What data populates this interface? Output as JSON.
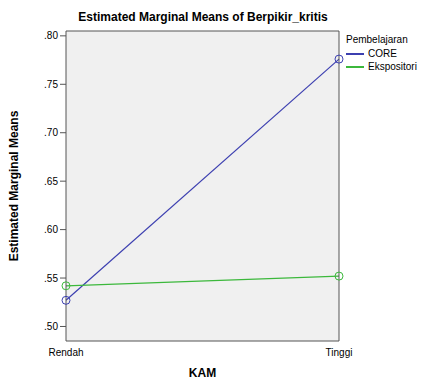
{
  "chart_data": {
    "type": "line",
    "title": "Estimated Marginal Means of Berpikir_kritis",
    "x_label": "KAM",
    "y_label": "Estimated Marginal Means",
    "legend_title": "Pembelajaran",
    "legend": "right",
    "grid": false,
    "categories": [
      "Rendah",
      "Tinggi"
    ],
    "series": [
      {
        "name": "CORE",
        "color": "#3c3fb0",
        "marker": "circle",
        "values": [
          0.527,
          0.776
        ]
      },
      {
        "name": "Ekspositori",
        "color": "#3cb83c",
        "marker": "circle",
        "values": [
          0.542,
          0.552
        ]
      }
    ],
    "ylim": [
      0.485,
      0.805
    ],
    "yticks": [
      {
        "value": 0.5,
        "label": ".50"
      },
      {
        "value": 0.55,
        "label": ".55"
      },
      {
        "value": 0.6,
        "label": ".60"
      },
      {
        "value": 0.65,
        "label": ".65"
      },
      {
        "value": 0.7,
        "label": ".70"
      },
      {
        "value": 0.75,
        "label": ".75"
      },
      {
        "value": 0.8,
        "label": ".80"
      }
    ]
  }
}
